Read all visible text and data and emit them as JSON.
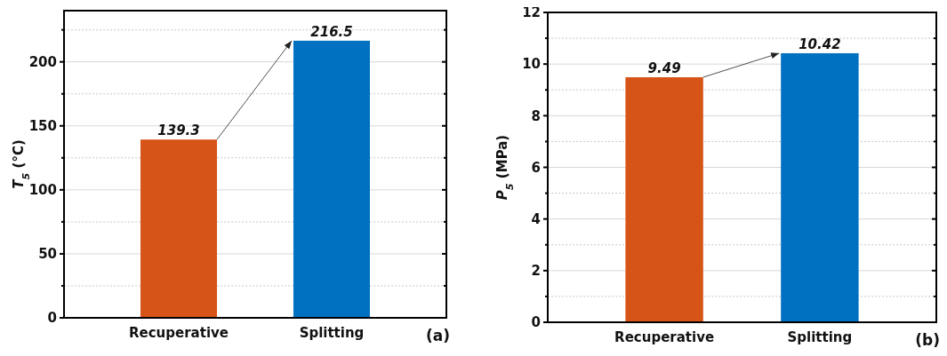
{
  "chart_data": [
    {
      "type": "bar",
      "categories": [
        "Recuperative",
        "Splitting"
      ],
      "values": [
        139.3,
        216.5
      ],
      "colors": [
        "#d75418",
        "#0070c0"
      ],
      "ylabel": "T$_{5}$ (°C)",
      "ylim": [
        0,
        240
      ],
      "yticks": [
        0,
        {
          "value": 25,
          "label": null
        },
        50,
        {
          "value": 75,
          "label": null
        },
        100,
        {
          "value": 125,
          "label": null
        },
        150,
        {
          "value": 175,
          "label": null
        },
        200,
        {
          "value": 225,
          "label": null
        }
      ],
      "grid": "y",
      "data_labels": true,
      "annotations": [
        "(a)"
      ]
    },
    {
      "type": "bar",
      "categories": [
        "Recuperative",
        "Splitting"
      ],
      "values": [
        9.49,
        10.42
      ],
      "colors": [
        "#d75418",
        "#0070c0"
      ],
      "ylabel": "P$_{5}$ (MPa)",
      "ylim": [
        0,
        12
      ],
      "yticks": [
        0,
        {
          "value": 1,
          "label": null
        },
        2,
        {
          "value": 3,
          "label": null
        },
        4,
        {
          "value": 5,
          "label": null
        },
        6,
        {
          "value": 7,
          "label": null
        },
        8,
        {
          "value": 9,
          "label": null
        },
        10,
        {
          "value": 11,
          "label": null
        },
        12
      ],
      "grid": "y",
      "data_labels": true,
      "annotations": [
        "(b)"
      ]
    }
  ]
}
